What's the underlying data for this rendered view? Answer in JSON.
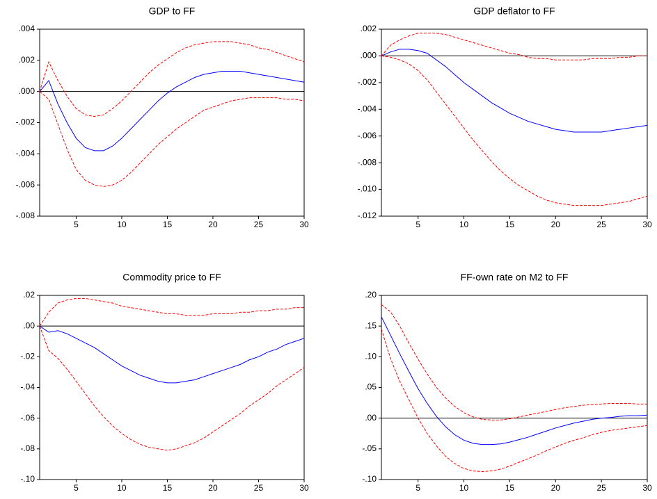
{
  "chart_data": [
    {
      "type": "line",
      "title": "GDP to FF",
      "x": [
        1,
        2,
        3,
        4,
        5,
        6,
        7,
        8,
        9,
        10,
        11,
        12,
        13,
        14,
        15,
        16,
        17,
        18,
        19,
        20,
        21,
        22,
        23,
        24,
        25,
        26,
        27,
        28,
        29,
        30
      ],
      "xlim": [
        1,
        30
      ],
      "xticks": [
        5,
        10,
        15,
        20,
        25,
        30
      ],
      "ylim": [
        -0.008,
        0.004
      ],
      "yticks": [
        {
          "value": 0.004,
          "label": ".004"
        },
        {
          "value": 0.002,
          "label": ".002"
        },
        {
          "value": 0,
          "label": ".000"
        },
        {
          "value": -0.002,
          "label": "-.002"
        },
        {
          "value": -0.004,
          "label": "-.004"
        },
        {
          "value": -0.006,
          "label": "-.006"
        },
        {
          "value": -0.008,
          "label": "-.008"
        }
      ],
      "series": [
        {
          "color": "#0000ff",
          "dashed": false,
          "values": [
            0,
            0.0007,
            -0.0008,
            -0.002,
            -0.003,
            -0.0036,
            -0.0038,
            -0.0038,
            -0.0035,
            -0.003,
            -0.0024,
            -0.0018,
            -0.0012,
            -0.0006,
            -0.0001,
            0.0003,
            0.0006,
            0.0009,
            0.0011,
            0.0012,
            0.0013,
            0.0013,
            0.0013,
            0.0012,
            0.0011,
            0.001,
            0.0009,
            0.0008,
            0.0007,
            0.0006
          ]
        },
        {
          "color": "#ff0000",
          "dashed": true,
          "values": [
            0,
            0.0019,
            0.0007,
            -0.0003,
            -0.0011,
            -0.0015,
            -0.0016,
            -0.0015,
            -0.0011,
            -0.0006,
            0,
            0.0006,
            0.0012,
            0.0017,
            0.0021,
            0.0025,
            0.0028,
            0.003,
            0.0031,
            0.0032,
            0.0032,
            0.0032,
            0.0031,
            0.003,
            0.0028,
            0.0027,
            0.0025,
            0.0023,
            0.0021,
            0.0019
          ]
        },
        {
          "color": "#ff0000",
          "dashed": true,
          "values": [
            0,
            -0.0005,
            -0.0021,
            -0.0037,
            -0.005,
            -0.0057,
            -0.006,
            -0.0061,
            -0.006,
            -0.0057,
            -0.0052,
            -0.0046,
            -0.004,
            -0.0034,
            -0.0029,
            -0.0024,
            -0.002,
            -0.0016,
            -0.0012,
            -0.001,
            -0.0008,
            -0.0006,
            -0.0005,
            -0.0004,
            -0.0004,
            -0.0004,
            -0.0004,
            -0.0005,
            -0.0005,
            -0.0006
          ]
        }
      ]
    },
    {
      "type": "line",
      "title": "GDP deflator to FF",
      "x": [
        1,
        2,
        3,
        4,
        5,
        6,
        7,
        8,
        9,
        10,
        11,
        12,
        13,
        14,
        15,
        16,
        17,
        18,
        19,
        20,
        21,
        22,
        23,
        24,
        25,
        26,
        27,
        28,
        29,
        30
      ],
      "xlim": [
        1,
        30
      ],
      "xticks": [
        5,
        10,
        15,
        20,
        25,
        30
      ],
      "ylim": [
        -0.012,
        0.002
      ],
      "yticks": [
        {
          "value": 0.002,
          "label": ".002"
        },
        {
          "value": 0,
          "label": ".000"
        },
        {
          "value": -0.002,
          "label": "-.002"
        },
        {
          "value": -0.004,
          "label": "-.004"
        },
        {
          "value": -0.006,
          "label": "-.006"
        },
        {
          "value": -0.008,
          "label": "-.008"
        },
        {
          "value": -0.01,
          "label": "-.010"
        },
        {
          "value": -0.012,
          "label": "-.012"
        }
      ],
      "series": [
        {
          "color": "#0000ff",
          "dashed": false,
          "values": [
            0,
            0.0003,
            0.0005,
            0.0005,
            0.0004,
            0.0002,
            -0.0003,
            -0.0008,
            -0.0014,
            -0.002,
            -0.0025,
            -0.003,
            -0.0035,
            -0.0039,
            -0.0043,
            -0.0046,
            -0.0049,
            -0.0051,
            -0.0053,
            -0.0055,
            -0.0056,
            -0.0057,
            -0.0057,
            -0.0057,
            -0.0057,
            -0.0056,
            -0.0055,
            -0.0054,
            -0.0053,
            -0.0052
          ]
        },
        {
          "color": "#ff0000",
          "dashed": true,
          "values": [
            0,
            0.0008,
            0.0012,
            0.0015,
            0.0017,
            0.0017,
            0.0017,
            0.0016,
            0.0014,
            0.0012,
            0.001,
            0.0008,
            0.0006,
            0.0004,
            0.0002,
            0.0001,
            -0.0001,
            -0.0002,
            -0.0002,
            -0.0003,
            -0.0003,
            -0.0003,
            -0.0003,
            -0.0002,
            -0.0002,
            -0.0002,
            -0.0001,
            -0.0001,
            0,
            0
          ]
        },
        {
          "color": "#ff0000",
          "dashed": true,
          "values": [
            0,
            -0.0001,
            -0.0003,
            -0.0006,
            -0.0011,
            -0.0018,
            -0.0027,
            -0.0036,
            -0.0045,
            -0.0054,
            -0.0063,
            -0.0071,
            -0.0079,
            -0.0086,
            -0.0092,
            -0.0097,
            -0.0101,
            -0.0105,
            -0.0108,
            -0.011,
            -0.0111,
            -0.0112,
            -0.0112,
            -0.0112,
            -0.0112,
            -0.0111,
            -0.011,
            -0.0109,
            -0.0107,
            -0.0105
          ]
        }
      ]
    },
    {
      "type": "line",
      "title": "Commodity price to FF",
      "x": [
        1,
        2,
        3,
        4,
        5,
        6,
        7,
        8,
        9,
        10,
        11,
        12,
        13,
        14,
        15,
        16,
        17,
        18,
        19,
        20,
        21,
        22,
        23,
        24,
        25,
        26,
        27,
        28,
        29,
        30
      ],
      "xlim": [
        1,
        30
      ],
      "xticks": [
        5,
        10,
        15,
        20,
        25,
        30
      ],
      "ylim": [
        -0.1,
        0.02
      ],
      "yticks": [
        {
          "value": 0.02,
          "label": ".02"
        },
        {
          "value": 0,
          "label": ".00"
        },
        {
          "value": -0.02,
          "label": "-.02"
        },
        {
          "value": -0.04,
          "label": "-.04"
        },
        {
          "value": -0.06,
          "label": "-.06"
        },
        {
          "value": -0.08,
          "label": "-.08"
        },
        {
          "value": -0.1,
          "label": "-.10"
        }
      ],
      "series": [
        {
          "color": "#0000ff",
          "dashed": false,
          "values": [
            0,
            -0.004,
            -0.003,
            -0.005,
            -0.008,
            -0.011,
            -0.014,
            -0.018,
            -0.022,
            -0.026,
            -0.029,
            -0.032,
            -0.034,
            -0.036,
            -0.037,
            -0.037,
            -0.036,
            -0.035,
            -0.033,
            -0.031,
            -0.029,
            -0.027,
            -0.025,
            -0.022,
            -0.02,
            -0.017,
            -0.015,
            -0.012,
            -0.01,
            -0.008
          ]
        },
        {
          "color": "#ff0000",
          "dashed": true,
          "values": [
            0,
            0.009,
            0.015,
            0.017,
            0.018,
            0.018,
            0.017,
            0.016,
            0.015,
            0.013,
            0.012,
            0.011,
            0.01,
            0.009,
            0.008,
            0.008,
            0.007,
            0.007,
            0.007,
            0.008,
            0.008,
            0.008,
            0.009,
            0.009,
            0.01,
            0.01,
            0.011,
            0.011,
            0.012,
            0.012
          ]
        },
        {
          "color": "#ff0000",
          "dashed": true,
          "values": [
            0,
            -0.016,
            -0.021,
            -0.028,
            -0.036,
            -0.044,
            -0.052,
            -0.059,
            -0.065,
            -0.07,
            -0.074,
            -0.077,
            -0.079,
            -0.08,
            -0.081,
            -0.08,
            -0.078,
            -0.076,
            -0.073,
            -0.069,
            -0.065,
            -0.061,
            -0.057,
            -0.052,
            -0.048,
            -0.044,
            -0.039,
            -0.035,
            -0.031,
            -0.027
          ]
        }
      ]
    },
    {
      "type": "line",
      "title": "FF-own rate on M2 to FF",
      "x": [
        1,
        2,
        3,
        4,
        5,
        6,
        7,
        8,
        9,
        10,
        11,
        12,
        13,
        14,
        15,
        16,
        17,
        18,
        19,
        20,
        21,
        22,
        23,
        24,
        25,
        26,
        27,
        28,
        29,
        30
      ],
      "xlim": [
        1,
        30
      ],
      "xticks": [
        5,
        10,
        15,
        20,
        25,
        30
      ],
      "ylim": [
        -0.1,
        0.2
      ],
      "yticks": [
        {
          "value": 0.2,
          "label": ".20"
        },
        {
          "value": 0.15,
          "label": ".15"
        },
        {
          "value": 0.1,
          "label": ".10"
        },
        {
          "value": 0.05,
          "label": ".05"
        },
        {
          "value": 0,
          "label": ".00"
        },
        {
          "value": -0.05,
          "label": "-.05"
        },
        {
          "value": -0.1,
          "label": "-.10"
        }
      ],
      "series": [
        {
          "color": "#0000ff",
          "dashed": false,
          "values": [
            0.165,
            0.135,
            0.105,
            0.076,
            0.048,
            0.024,
            0.003,
            -0.014,
            -0.027,
            -0.036,
            -0.041,
            -0.043,
            -0.043,
            -0.042,
            -0.039,
            -0.035,
            -0.031,
            -0.026,
            -0.021,
            -0.016,
            -0.012,
            -0.008,
            -0.005,
            -0.002,
            0,
            0.001,
            0.003,
            0.004,
            0.004,
            0.005
          ]
        },
        {
          "color": "#ff0000",
          "dashed": true,
          "values": [
            0.185,
            0.173,
            0.15,
            0.122,
            0.096,
            0.072,
            0.05,
            0.033,
            0.019,
            0.009,
            0.002,
            -0.002,
            -0.003,
            -0.003,
            -0.001,
            0.002,
            0.005,
            0.008,
            0.011,
            0.014,
            0.017,
            0.019,
            0.021,
            0.022,
            0.023,
            0.024,
            0.024,
            0.024,
            0.023,
            0.023
          ]
        },
        {
          "color": "#ff0000",
          "dashed": true,
          "values": [
            0.145,
            0.097,
            0.06,
            0.03,
            0,
            -0.025,
            -0.045,
            -0.062,
            -0.074,
            -0.082,
            -0.086,
            -0.087,
            -0.086,
            -0.083,
            -0.078,
            -0.072,
            -0.066,
            -0.06,
            -0.053,
            -0.047,
            -0.041,
            -0.036,
            -0.032,
            -0.027,
            -0.023,
            -0.02,
            -0.018,
            -0.016,
            -0.014,
            -0.012
          ]
        }
      ]
    }
  ]
}
